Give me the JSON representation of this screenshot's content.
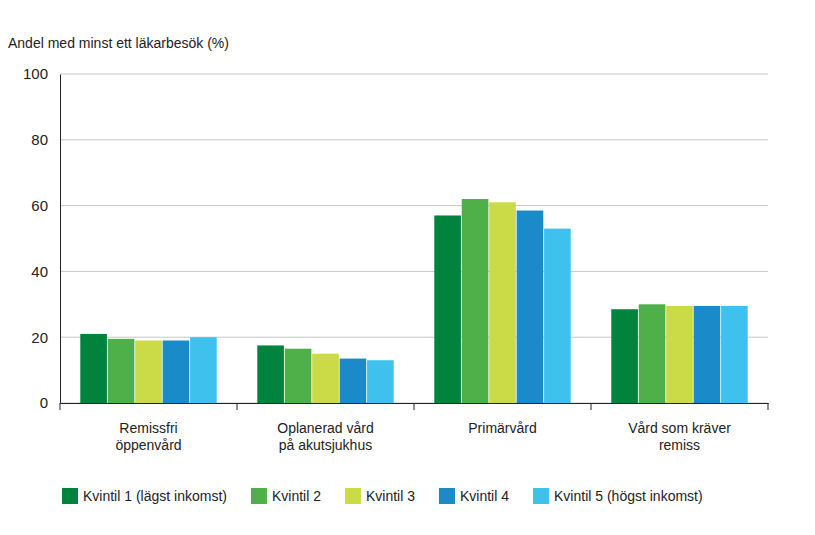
{
  "chart_data": {
    "type": "bar",
    "title": "Andel med minst ett läkarbesök (%)",
    "categories": [
      "Remissfri\nöppenvård",
      "Oplanerad vård\npå akutsjukhus",
      "Primärvård",
      "Vård som kräver\nremiss"
    ],
    "series": [
      {
        "name": "Kvintil 1 (lägst inkomst)",
        "color": "#00843d",
        "values": [
          21,
          17.5,
          57,
          28.5
        ]
      },
      {
        "name": "Kvintil 2",
        "color": "#4fb04a",
        "values": [
          19.5,
          16.5,
          62,
          30
        ]
      },
      {
        "name": "Kvintil 3",
        "color": "#cbdb47",
        "values": [
          19,
          15,
          61,
          29.5
        ]
      },
      {
        "name": "Kvintil 4",
        "color": "#1a8ac9",
        "values": [
          19,
          13.5,
          58.5,
          29.5
        ]
      },
      {
        "name": "Kvintil 5 (högst inkomst)",
        "color": "#3fc1ee",
        "values": [
          20,
          13,
          53,
          29.5
        ]
      }
    ],
    "ylim": [
      0,
      100
    ],
    "yticks": [
      0,
      20,
      40,
      60,
      80,
      100
    ],
    "grid": true,
    "legend": "bottom"
  }
}
